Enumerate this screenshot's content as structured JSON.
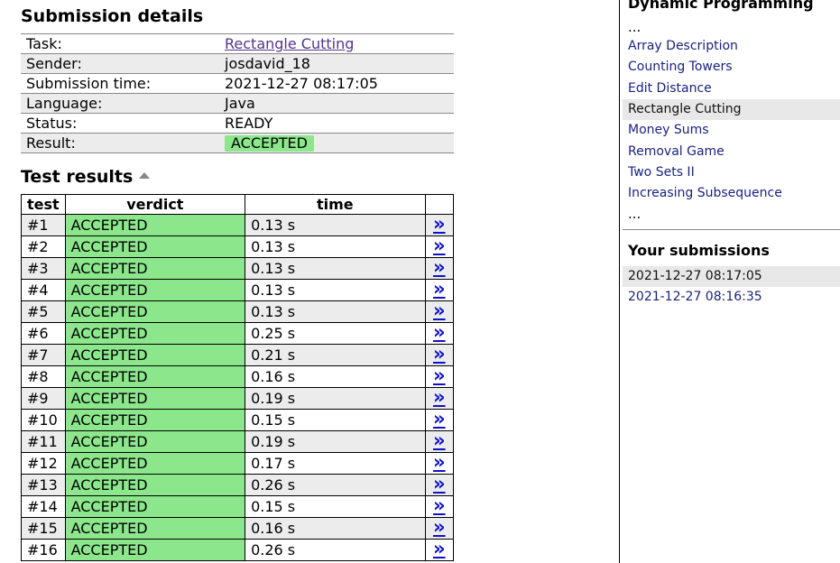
{
  "details": {
    "title": "Submission details",
    "rows": [
      {
        "label": "Task:",
        "value": "Rectangle Cutting"
      },
      {
        "label": "Sender:",
        "value": "josdavid_18"
      },
      {
        "label": "Submission time:",
        "value": "2021-12-27 08:17:05"
      },
      {
        "label": "Language:",
        "value": "Java"
      },
      {
        "label": "Status:",
        "value": "READY"
      },
      {
        "label": "Result:",
        "value": "ACCEPTED"
      }
    ]
  },
  "tests": {
    "title": "Test results",
    "headers": [
      "test",
      "verdict",
      "time",
      ""
    ],
    "link_symbol": "»",
    "rows": [
      {
        "test": "#1",
        "verdict": "ACCEPTED",
        "time": "0.13 s"
      },
      {
        "test": "#2",
        "verdict": "ACCEPTED",
        "time": "0.13 s"
      },
      {
        "test": "#3",
        "verdict": "ACCEPTED",
        "time": "0.13 s"
      },
      {
        "test": "#4",
        "verdict": "ACCEPTED",
        "time": "0.13 s"
      },
      {
        "test": "#5",
        "verdict": "ACCEPTED",
        "time": "0.13 s"
      },
      {
        "test": "#6",
        "verdict": "ACCEPTED",
        "time": "0.25 s"
      },
      {
        "test": "#7",
        "verdict": "ACCEPTED",
        "time": "0.21 s"
      },
      {
        "test": "#8",
        "verdict": "ACCEPTED",
        "time": "0.16 s"
      },
      {
        "test": "#9",
        "verdict": "ACCEPTED",
        "time": "0.19 s"
      },
      {
        "test": "#10",
        "verdict": "ACCEPTED",
        "time": "0.15 s"
      },
      {
        "test": "#11",
        "verdict": "ACCEPTED",
        "time": "0.19 s"
      },
      {
        "test": "#12",
        "verdict": "ACCEPTED",
        "time": "0.17 s"
      },
      {
        "test": "#13",
        "verdict": "ACCEPTED",
        "time": "0.26 s"
      },
      {
        "test": "#14",
        "verdict": "ACCEPTED",
        "time": "0.15 s"
      },
      {
        "test": "#15",
        "verdict": "ACCEPTED",
        "time": "0.16 s"
      },
      {
        "test": "#16",
        "verdict": "ACCEPTED",
        "time": "0.26 s"
      }
    ]
  },
  "sidebar": {
    "section_title": "Dynamic Programming",
    "ellipsis": "...",
    "tasks": [
      {
        "label": "Array Description",
        "active": false
      },
      {
        "label": "Counting Towers",
        "active": false
      },
      {
        "label": "Edit Distance",
        "active": false
      },
      {
        "label": "Rectangle Cutting",
        "active": true
      },
      {
        "label": "Money Sums",
        "active": false
      },
      {
        "label": "Removal Game",
        "active": false
      },
      {
        "label": "Two Sets II",
        "active": false
      },
      {
        "label": "Increasing Subsequence",
        "active": false
      }
    ],
    "submissions_title": "Your submissions",
    "submissions": [
      {
        "label": "2021-12-27 08:17:05",
        "active": true
      },
      {
        "label": "2021-12-27 08:16:35",
        "active": false
      }
    ]
  },
  "colors": {
    "accepted_bg": "#8ce68c",
    "link": "#1a237e",
    "visited_link": "#55338a",
    "row_alt": "#ececec"
  }
}
